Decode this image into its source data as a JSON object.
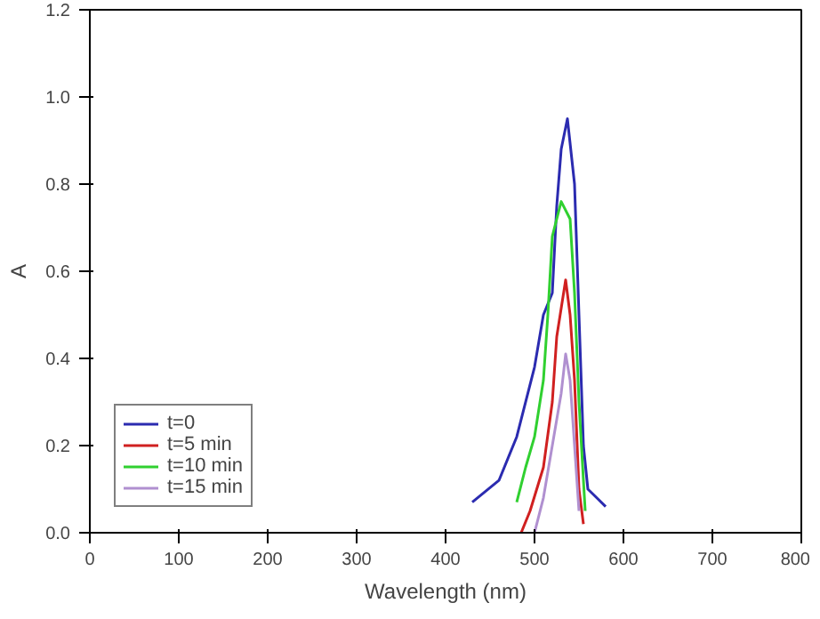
{
  "chart_data": {
    "type": "line",
    "xlabel": "Wavelength (nm)",
    "ylabel": "A",
    "xlim": [
      0,
      800
    ],
    "ylim": [
      0,
      1.2
    ],
    "xticks": [
      0,
      100,
      200,
      300,
      400,
      500,
      600,
      700,
      800
    ],
    "yticks": [
      {
        "value": 0,
        "label": "0.0"
      },
      {
        "value": 0.2,
        "label": "0.2"
      },
      {
        "value": 0.4,
        "label": "0.4"
      },
      {
        "value": 0.6,
        "label": "0.6"
      },
      {
        "value": 0.8,
        "label": "0.8"
      },
      {
        "value": 1.0,
        "label": "1.0"
      },
      {
        "value": 1.2,
        "label": "1.2"
      }
    ],
    "grid": false,
    "legend": "bottom left",
    "line_style": "solid",
    "series": [
      {
        "name": "t=0",
        "color": "#2b2bb0",
        "x": [
          430,
          460,
          480,
          500,
          510,
          520,
          525,
          530,
          537,
          545,
          550,
          555,
          560,
          570,
          580
        ],
        "values": [
          0.07,
          0.12,
          0.22,
          0.38,
          0.5,
          0.55,
          0.75,
          0.88,
          0.95,
          0.8,
          0.5,
          0.2,
          0.1,
          0.08,
          0.06
        ]
      },
      {
        "name": "t=5 min",
        "color": "#d02020",
        "x": [
          485,
          495,
          510,
          520,
          525,
          535,
          540,
          545,
          550,
          555
        ],
        "values": [
          0.0,
          0.05,
          0.15,
          0.3,
          0.45,
          0.58,
          0.5,
          0.35,
          0.1,
          0.02
        ]
      },
      {
        "name": "t=10 min",
        "color": "#30d030",
        "x": [
          480,
          490,
          500,
          510,
          515,
          520,
          530,
          540,
          545,
          550,
          555,
          557
        ],
        "values": [
          0.07,
          0.15,
          0.22,
          0.35,
          0.5,
          0.68,
          0.76,
          0.72,
          0.55,
          0.3,
          0.12,
          0.05
        ]
      },
      {
        "name": "t=15 min",
        "color": "#b090d0",
        "x": [
          500,
          510,
          520,
          530,
          535,
          540,
          545,
          550
        ],
        "values": [
          0.0,
          0.08,
          0.2,
          0.32,
          0.41,
          0.35,
          0.2,
          0.05
        ]
      }
    ]
  }
}
